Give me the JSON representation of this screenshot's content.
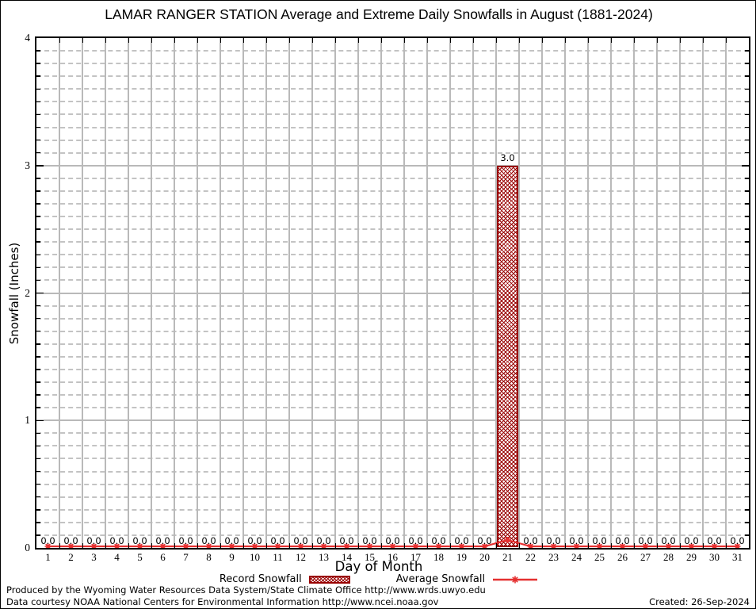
{
  "chart_data": {
    "type": "bar",
    "title": "LAMAR RANGER STATION Average and Extreme Daily Snowfalls in August (1881-2024)",
    "xlabel": "Day of Month",
    "ylabel": "Snowfall (Inches)",
    "x": [
      1,
      2,
      3,
      4,
      5,
      6,
      7,
      8,
      9,
      10,
      11,
      12,
      13,
      14,
      15,
      16,
      17,
      18,
      19,
      20,
      21,
      22,
      23,
      24,
      25,
      26,
      27,
      28,
      29,
      30,
      31
    ],
    "ylim": [
      0,
      4
    ],
    "yticks": [
      0,
      1,
      2,
      3,
      4
    ],
    "y_minor_step": 0.1,
    "grid": {
      "vertical": "solid",
      "major_horizontal": "solid",
      "minor_horizontal": "dashed",
      "color": "#b9b9b9"
    },
    "legend_position": "bottom",
    "series": [
      {
        "name": "Record Snowfall",
        "type": "bar",
        "color": "#990000",
        "values": [
          0,
          0,
          0,
          0,
          0,
          0,
          0,
          0,
          0,
          0,
          0,
          0,
          0,
          0,
          0,
          0,
          0,
          0,
          0,
          0,
          3.0,
          0,
          0,
          0,
          0,
          0,
          0,
          0,
          0,
          0,
          0
        ],
        "point_labels": [
          "0.0",
          "0.0",
          "0.0",
          "0.0",
          "0.0",
          "0.0",
          "0.0",
          "0.0",
          "0.0",
          "0.0",
          "0.0",
          "0.0",
          "0.0",
          "0.0",
          "0.0",
          "0.0",
          "0.0",
          "0.0",
          "0.0",
          "0.0",
          "3.0",
          "0.0",
          "0.0",
          "0.0",
          "0.0",
          "0.0",
          "0.0",
          "0.0",
          "0.0",
          "0.0",
          "0.0"
        ]
      },
      {
        "name": "Average Snowfall",
        "type": "line",
        "color": "#e53030",
        "values": [
          0,
          0,
          0,
          0,
          0,
          0,
          0,
          0,
          0,
          0,
          0,
          0,
          0,
          0,
          0,
          0,
          0,
          0,
          0,
          0,
          0.05,
          0,
          0,
          0,
          0,
          0,
          0,
          0,
          0,
          0,
          0
        ]
      }
    ]
  },
  "footer": {
    "line1": "Produced by the Wyoming Water Resources Data System/State Climate Office http://www.wrds.uwyo.edu",
    "line2": "Data courtesy NOAA National Centers for Environmental Information http://www.ncei.noaa.gov",
    "created": "Created: 26-Sep-2024"
  }
}
